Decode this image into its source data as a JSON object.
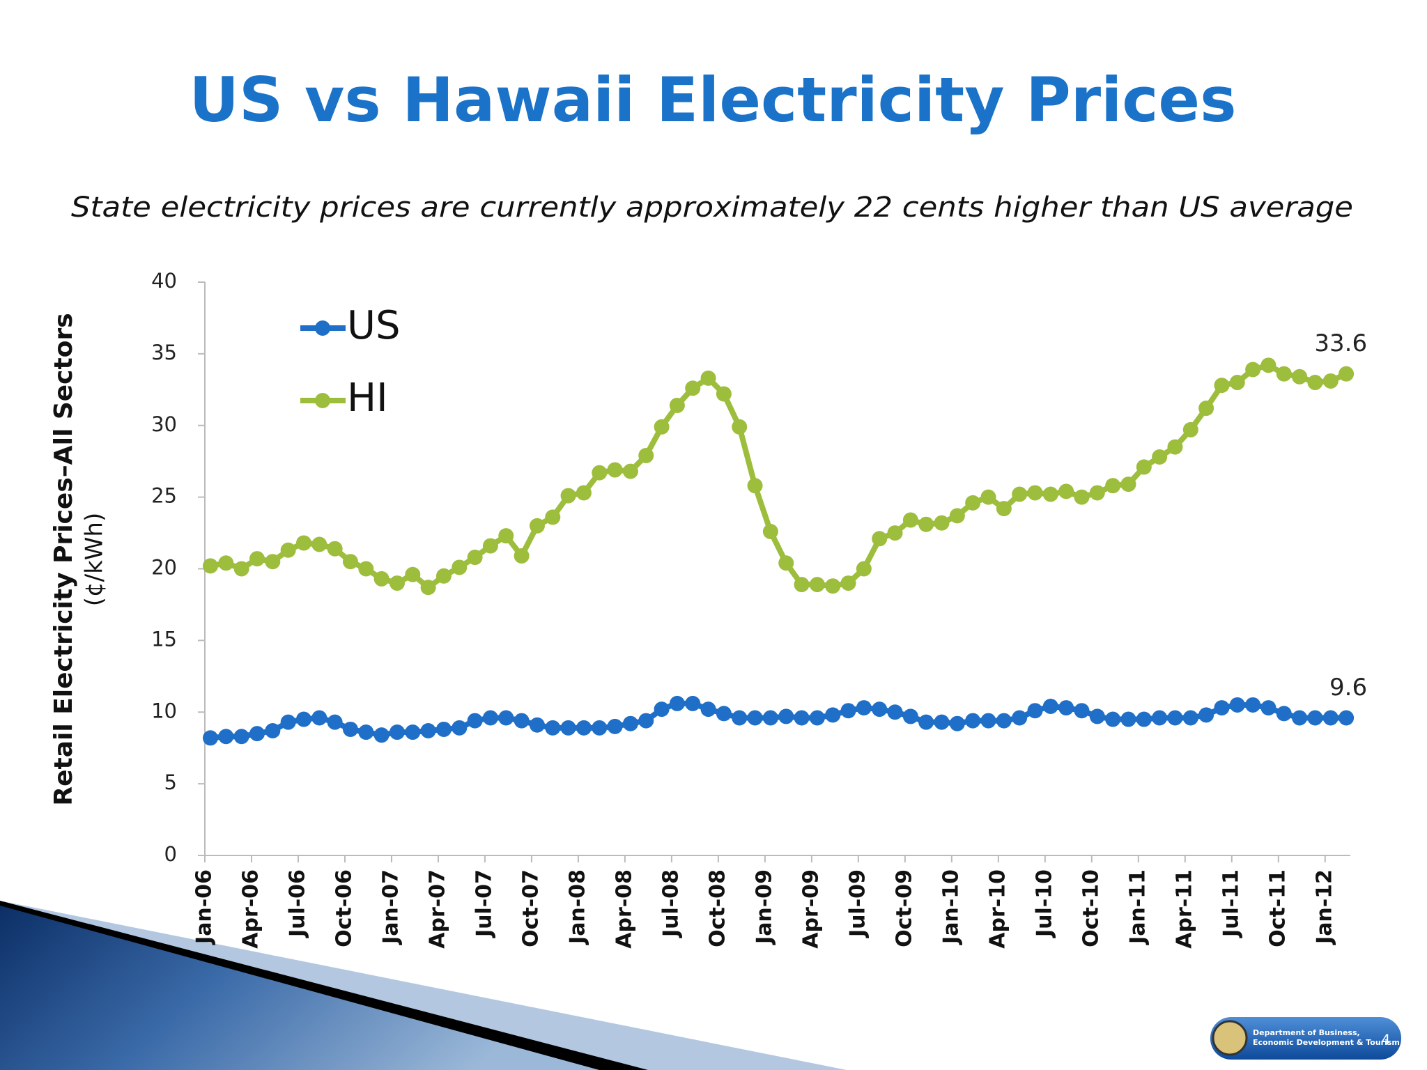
{
  "chart_data": {
    "type": "line",
    "title": "US vs Hawaii Electricity Prices",
    "subtitle": "State electricity prices are currently approximately 22 cents higher than US average",
    "ylabel": [
      "Retail Electricity Prices–All Sectors",
      "(¢/kWh)"
    ],
    "categories": [
      "Jan-06",
      null,
      null,
      "Apr-06",
      null,
      null,
      "Jul-06",
      null,
      null,
      "Oct-06",
      null,
      null,
      "Jan-07",
      null,
      null,
      "Apr-07",
      null,
      null,
      "Jul-07",
      null,
      null,
      "Oct-07",
      null,
      null,
      "Jan-08",
      null,
      null,
      "Apr-08",
      null,
      null,
      "Jul-08",
      null,
      null,
      "Oct-08",
      null,
      null,
      "Jan-09",
      null,
      null,
      "Apr-09",
      null,
      null,
      "Jul-09",
      null,
      null,
      "Oct-09",
      null,
      null,
      "Jan-10",
      null,
      null,
      "Apr-10",
      null,
      null,
      "Jul-10",
      null,
      null,
      "Oct-10",
      null,
      null,
      "Jan-11",
      null,
      null,
      "Apr-11",
      null,
      null,
      "Jul-11",
      null,
      null,
      "Oct-11",
      null,
      null,
      "Jan-12",
      null
    ],
    "series": [
      {
        "name": "US",
        "color": "#1f6fc8",
        "values": [
          8.2,
          8.3,
          8.3,
          8.5,
          8.7,
          9.3,
          9.5,
          9.6,
          9.3,
          8.8,
          8.6,
          8.4,
          8.6,
          8.6,
          8.7,
          8.8,
          8.9,
          9.4,
          9.6,
          9.6,
          9.4,
          9.1,
          8.9,
          8.9,
          8.9,
          8.9,
          9.0,
          9.2,
          9.4,
          10.2,
          10.6,
          10.6,
          10.2,
          9.9,
          9.6,
          9.6,
          9.6,
          9.7,
          9.6,
          9.6,
          9.8,
          10.1,
          10.3,
          10.2,
          10.0,
          9.7,
          9.3,
          9.3,
          9.2,
          9.4,
          9.4,
          9.4,
          9.6,
          10.1,
          10.4,
          10.3,
          10.1,
          9.7,
          9.5,
          9.5,
          9.5,
          9.6,
          9.6,
          9.6,
          9.8,
          10.3,
          10.5,
          10.5,
          10.3,
          9.9,
          9.6,
          9.6,
          9.6,
          9.6
        ]
      },
      {
        "name": "HI",
        "color": "#9dbd3c",
        "values": [
          20.2,
          20.4,
          20.0,
          20.7,
          20.5,
          21.3,
          21.8,
          21.7,
          21.4,
          20.5,
          20.0,
          19.3,
          19.0,
          19.6,
          18.7,
          19.5,
          20.1,
          20.8,
          21.6,
          22.3,
          20.9,
          23.0,
          23.6,
          25.1,
          25.3,
          26.7,
          26.9,
          26.8,
          27.9,
          29.9,
          31.4,
          32.6,
          33.3,
          32.2,
          29.9,
          25.8,
          22.6,
          20.4,
          18.9,
          18.9,
          18.8,
          19.0,
          20.0,
          22.1,
          22.5,
          23.4,
          23.1,
          23.2,
          23.7,
          24.6,
          25.0,
          24.2,
          25.2,
          25.3,
          25.2,
          25.4,
          25.0,
          25.3,
          25.8,
          25.9,
          27.1,
          27.8,
          28.5,
          29.7,
          31.2,
          32.8,
          33.0,
          33.9,
          34.2,
          33.6,
          33.4,
          33.0,
          33.1,
          33.6
        ]
      }
    ],
    "ylim": [
      0,
      40
    ],
    "yticks": [
      0,
      5,
      10,
      15,
      20,
      25,
      30,
      35,
      40
    ],
    "grid": false,
    "legend": "top-left"
  },
  "slide": {
    "logo_text": [
      "Department of Business,",
      "Economic Development & Tourism"
    ],
    "page_number": "4"
  }
}
